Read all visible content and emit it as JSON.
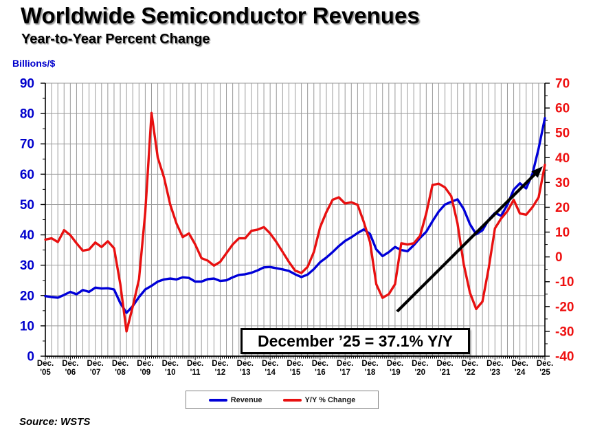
{
  "page": {
    "title": "Worldwide Semiconductor Revenues",
    "subtitle": "Year-to-Year Percent Change",
    "source": "Source: WSTS"
  },
  "chart_data": {
    "type": "line",
    "title": "Worldwide Semiconductor Revenues",
    "subtitle": "Year-to-Year Percent Change",
    "grid": true,
    "legend_position": "bottom-center",
    "left_axis": {
      "label": "Billions/$",
      "min": 0,
      "max": 90,
      "tick_step": 10,
      "color": "#0000cc",
      "tick_labels": [
        "0",
        "10",
        "20",
        "30",
        "40",
        "50",
        "60",
        "70",
        "80",
        "90"
      ]
    },
    "right_axis": {
      "min": -40,
      "max": 70,
      "tick_step": 10,
      "color": "#ee1111",
      "tick_labels": [
        "-40",
        "-30",
        "-20",
        "-10",
        "0",
        "10",
        "20",
        "30",
        "40",
        "50",
        "60",
        "70"
      ]
    },
    "x_axis": {
      "start": "Dec 2005",
      "end": "Dec 2025",
      "months_total": 240,
      "gridline_interval": "quarterly",
      "minor_tick_interval": "monthly",
      "tick_labels": [
        "Dec. '05",
        "Dec. '06",
        "Dec. '07",
        "Dec. '08",
        "Dec. '09",
        "Dec. '10",
        "Dec. '11",
        "Dec. '12",
        "Dec. '13",
        "Dec. '14",
        "Dec. '15",
        "Dec. '16",
        "Dec. '17",
        "Dec. '18",
        "Dec. '19",
        "Dec. '20",
        "Dec. '21",
        "Dec. '22",
        "Dec. '23",
        "Dec. '24",
        "Dec. '25"
      ]
    },
    "series": [
      {
        "name": "Revenue",
        "axis": "left",
        "color": "#0000d8",
        "point_interval_months": 3,
        "values": [
          19.8,
          19.5,
          19.3,
          20.2,
          21.2,
          20.4,
          21.8,
          21.2,
          22.6,
          22.3,
          22.4,
          22.0,
          17.5,
          14.3,
          16.5,
          19.5,
          22.0,
          23.2,
          24.6,
          25.3,
          25.6,
          25.3,
          26.0,
          25.8,
          24.6,
          24.6,
          25.4,
          25.6,
          24.8,
          25.0,
          26.0,
          26.8,
          27.0,
          27.5,
          28.3,
          29.3,
          29.4,
          29.0,
          28.6,
          28.1,
          27.0,
          26.1,
          26.9,
          28.7,
          31.0,
          32.5,
          34.3,
          36.3,
          38.0,
          39.2,
          40.6,
          41.8,
          40.3,
          35.2,
          33.0,
          34.3,
          36.0,
          35.0,
          34.6,
          36.6,
          39.0,
          41.0,
          44.5,
          47.7,
          50.0,
          50.9,
          51.7,
          48.5,
          43.5,
          40.2,
          41.5,
          45.0,
          47.2,
          46.3,
          50.0,
          54.9,
          57.0,
          55.3,
          60.0,
          68.5,
          78.5
        ]
      },
      {
        "name": "Y/Y % Change",
        "axis": "right",
        "color": "#e81010",
        "point_interval_months": 3,
        "values": [
          7.0,
          7.5,
          6.0,
          10.8,
          8.8,
          5.5,
          2.5,
          3.0,
          5.8,
          4.0,
          6.3,
          3.5,
          -11.0,
          -30.0,
          -20.0,
          -9.0,
          18.0,
          58.0,
          40.0,
          32.0,
          21.0,
          13.5,
          8.0,
          9.5,
          5.0,
          -0.5,
          -1.5,
          -3.5,
          -2.0,
          1.5,
          5.0,
          7.5,
          7.5,
          10.5,
          11.0,
          12.0,
          9.5,
          6.0,
          2.0,
          -2.0,
          -5.5,
          -6.5,
          -4.0,
          2.0,
          12.0,
          18.0,
          23.0,
          24.0,
          21.5,
          22.0,
          21.0,
          14.0,
          6.0,
          -11.0,
          -16.5,
          -15.0,
          -11.0,
          5.5,
          5.0,
          5.5,
          8.5,
          17.5,
          29.0,
          29.5,
          28.0,
          24.5,
          13.5,
          -3.0,
          -14.5,
          -21.0,
          -18.0,
          -4.5,
          11.5,
          15.5,
          18.5,
          23.0,
          17.5,
          17.0,
          20.0,
          24.0,
          37.1
        ]
      }
    ],
    "annotation": {
      "text": "December ’25 = 37.1% Y/Y"
    },
    "trend_arrow": {
      "axis": "right",
      "from_month": 169,
      "from_value": -22.0,
      "to_month": 239,
      "to_value": 36.5,
      "color": "#000000"
    }
  }
}
